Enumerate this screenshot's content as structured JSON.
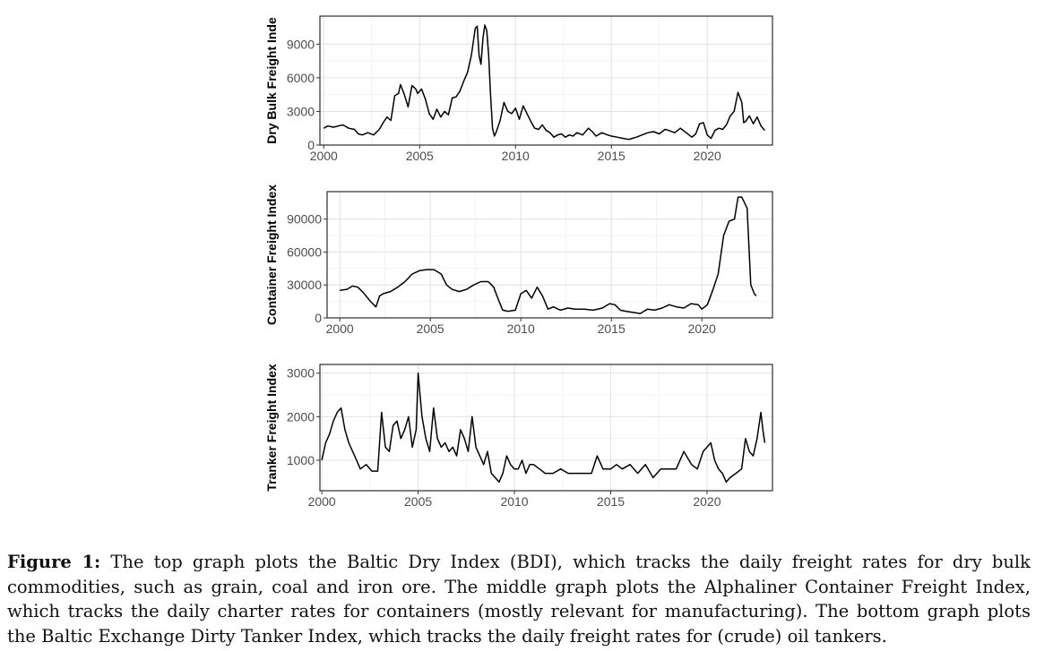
{
  "chart_data": [
    {
      "type": "line",
      "ylabel": "Dry Bulk Freight Inde",
      "xlim": [
        1999.8,
        2023.4
      ],
      "ylim": [
        0,
        11500
      ],
      "xticks": [
        2000,
        2005,
        2010,
        2015,
        2020
      ],
      "yticks": [
        0,
        3000,
        6000,
        9000
      ],
      "grid": true,
      "series": [
        {
          "x": [
            2000.0,
            2000.2,
            2000.5,
            2001.0,
            2001.3,
            2001.6,
            2001.8,
            2002.0,
            2002.3,
            2002.6,
            2002.9,
            2003.1,
            2003.3,
            2003.5,
            2003.7,
            2003.9,
            2004.0,
            2004.2,
            2004.4,
            2004.6,
            2004.8,
            2004.9,
            2005.1,
            2005.3,
            2005.5,
            2005.7,
            2005.9,
            2006.1,
            2006.3,
            2006.5,
            2006.7,
            2006.9,
            2007.1,
            2007.3,
            2007.5,
            2007.7,
            2007.9,
            2008.0,
            2008.1,
            2008.2,
            2008.3,
            2008.4,
            2008.5,
            2008.6,
            2008.7,
            2008.8,
            2008.9,
            2009.0,
            2009.2,
            2009.4,
            2009.6,
            2009.8,
            2010.0,
            2010.2,
            2010.4,
            2010.6,
            2010.8,
            2011.0,
            2011.2,
            2011.4,
            2011.6,
            2011.8,
            2012.0,
            2012.2,
            2012.4,
            2012.6,
            2012.8,
            2013.0,
            2013.2,
            2013.5,
            2013.8,
            2014.0,
            2014.2,
            2014.5,
            2014.8,
            2015.0,
            2015.3,
            2015.6,
            2015.9,
            2016.1,
            2016.3,
            2016.6,
            2016.9,
            2017.2,
            2017.5,
            2017.8,
            2018.0,
            2018.3,
            2018.6,
            2018.9,
            2019.2,
            2019.4,
            2019.6,
            2019.8,
            2020.0,
            2020.2,
            2020.4,
            2020.6,
            2020.8,
            2021.0,
            2021.2,
            2021.4,
            2021.6,
            2021.8,
            2021.9,
            2022.0,
            2022.2,
            2022.4,
            2022.6,
            2022.8,
            2023.0
          ],
          "y": [
            1500,
            1700,
            1600,
            1800,
            1500,
            1400,
            1000,
            900,
            1100,
            900,
            1400,
            2000,
            2500,
            2200,
            4400,
            4600,
            5400,
            4500,
            3400,
            5300,
            5000,
            4600,
            5000,
            4100,
            2800,
            2300,
            3200,
            2500,
            3000,
            2700,
            4200,
            4300,
            4800,
            5700,
            6500,
            8000,
            10400,
            10600,
            8000,
            7200,
            9500,
            10700,
            10200,
            8000,
            4500,
            1500,
            800,
            1200,
            2200,
            3800,
            3000,
            2800,
            3300,
            2300,
            3500,
            2800,
            2100,
            1500,
            1400,
            1800,
            1300,
            1100,
            700,
            900,
            1000,
            700,
            900,
            800,
            1100,
            900,
            1500,
            1200,
            800,
            1100,
            900,
            800,
            700,
            600,
            500,
            600,
            700,
            900,
            1100,
            1200,
            1000,
            1400,
            1300,
            1100,
            1500,
            1100,
            700,
            1000,
            1900,
            2000,
            900,
            600,
            1300,
            1500,
            1400,
            1800,
            2600,
            3000,
            4700,
            3800,
            2000,
            2100,
            2600,
            1900,
            2500,
            1700,
            1300
          ]
        }
      ]
    },
    {
      "type": "line",
      "ylabel": "Container Freight Index",
      "xlim": [
        1999.3,
        2023.9
      ],
      "ylim": [
        0,
        115000
      ],
      "xticks": [
        2000,
        2005,
        2010,
        2015,
        2020
      ],
      "yticks": [
        0,
        30000,
        60000,
        90000
      ],
      "grid": true,
      "series": [
        {
          "x": [
            2000.0,
            2000.4,
            2000.7,
            2001.0,
            2001.3,
            2001.7,
            2002.0,
            2002.2,
            2002.4,
            2002.8,
            2003.2,
            2003.6,
            2004.0,
            2004.4,
            2004.8,
            2005.2,
            2005.6,
            2005.9,
            2006.2,
            2006.6,
            2007.0,
            2007.4,
            2007.8,
            2008.2,
            2008.5,
            2008.8,
            2009.0,
            2009.3,
            2009.7,
            2010.0,
            2010.3,
            2010.6,
            2010.9,
            2011.2,
            2011.5,
            2011.8,
            2012.2,
            2012.6,
            2013.0,
            2013.5,
            2014.0,
            2014.5,
            2014.9,
            2015.2,
            2015.5,
            2015.8,
            2016.2,
            2016.6,
            2017.0,
            2017.4,
            2017.8,
            2018.2,
            2018.6,
            2019.0,
            2019.4,
            2019.8,
            2020.0,
            2020.3,
            2020.6,
            2020.9,
            2021.2,
            2021.5,
            2021.8,
            2022.0,
            2022.2,
            2022.5,
            2022.7,
            2022.9,
            2023.0
          ],
          "y": [
            25000,
            26000,
            29000,
            28000,
            23000,
            15000,
            10000,
            20000,
            22000,
            24000,
            28000,
            33000,
            40000,
            43000,
            44000,
            44000,
            40000,
            30000,
            26000,
            24000,
            26000,
            30000,
            33000,
            33000,
            28000,
            15000,
            7000,
            6000,
            7000,
            22000,
            25000,
            18000,
            28000,
            20000,
            8000,
            10000,
            7000,
            9000,
            8000,
            8000,
            7000,
            9000,
            13000,
            12000,
            7000,
            6000,
            5000,
            4000,
            8000,
            7000,
            9000,
            12000,
            10000,
            9000,
            13000,
            12000,
            8000,
            12000,
            25000,
            40000,
            75000,
            88000,
            90000,
            110000,
            110000,
            100000,
            30000,
            22000,
            20000
          ]
        }
      ]
    },
    {
      "type": "line",
      "ylabel": "Tranker Freight Index",
      "xlim": [
        1999.9,
        2023.4
      ],
      "ylim": [
        300,
        3200
      ],
      "xticks": [
        2000,
        2005,
        2010,
        2015,
        2020
      ],
      "yticks": [
        1000,
        2000,
        3000
      ],
      "grid": true,
      "series": [
        {
          "x": [
            2000.0,
            2000.2,
            2000.4,
            2000.6,
            2000.8,
            2001.0,
            2001.2,
            2001.4,
            2001.7,
            2002.0,
            2002.3,
            2002.6,
            2002.9,
            2003.1,
            2003.3,
            2003.5,
            2003.7,
            2003.9,
            2004.1,
            2004.3,
            2004.5,
            2004.7,
            2004.9,
            2005.0,
            2005.2,
            2005.4,
            2005.6,
            2005.8,
            2006.0,
            2006.2,
            2006.4,
            2006.6,
            2006.8,
            2007.0,
            2007.2,
            2007.4,
            2007.6,
            2007.8,
            2008.0,
            2008.2,
            2008.4,
            2008.6,
            2008.8,
            2009.0,
            2009.2,
            2009.4,
            2009.6,
            2009.8,
            2010.0,
            2010.2,
            2010.4,
            2010.6,
            2010.8,
            2011.0,
            2011.3,
            2011.6,
            2012.0,
            2012.4,
            2012.8,
            2013.2,
            2013.6,
            2014.0,
            2014.3,
            2014.6,
            2015.0,
            2015.3,
            2015.6,
            2016.0,
            2016.4,
            2016.8,
            2017.2,
            2017.6,
            2018.0,
            2018.4,
            2018.8,
            2019.2,
            2019.5,
            2019.8,
            2020.0,
            2020.2,
            2020.4,
            2020.6,
            2020.8,
            2021.0,
            2021.2,
            2021.5,
            2021.8,
            2022.0,
            2022.2,
            2022.4,
            2022.6,
            2022.8,
            2022.9,
            2023.0
          ],
          "y": [
            1000,
            1400,
            1600,
            1900,
            2100,
            2200,
            1700,
            1400,
            1100,
            800,
            900,
            750,
            750,
            2100,
            1300,
            1200,
            1800,
            1900,
            1500,
            1700,
            2000,
            1300,
            1700,
            3000,
            2000,
            1500,
            1200,
            2200,
            1500,
            1300,
            1400,
            1200,
            1300,
            1100,
            1700,
            1500,
            1200,
            2000,
            1300,
            1100,
            900,
            1200,
            700,
            600,
            500,
            700,
            1100,
            900,
            800,
            800,
            1000,
            700,
            900,
            900,
            800,
            700,
            700,
            800,
            700,
            700,
            700,
            700,
            1100,
            800,
            800,
            900,
            800,
            900,
            700,
            900,
            600,
            800,
            800,
            800,
            1200,
            900,
            800,
            1200,
            1300,
            1400,
            1000,
            800,
            700,
            500,
            600,
            700,
            800,
            1500,
            1200,
            1100,
            1500,
            2100,
            1700,
            1400
          ]
        }
      ]
    }
  ],
  "caption": {
    "label": "Figure 1:",
    "text": " The top graph plots the Baltic Dry Index (BDI), which tracks the daily freight rates for dry bulk commodities, such as grain, coal and iron ore. The middle graph plots the Alphaliner Container Freight Index, which tracks the daily charter rates for containers (mostly relevant for manufacturing). The bottom graph plots the Baltic Exchange Dirty Tanker Index, which tracks the daily freight rates for (crude) oil tankers."
  }
}
